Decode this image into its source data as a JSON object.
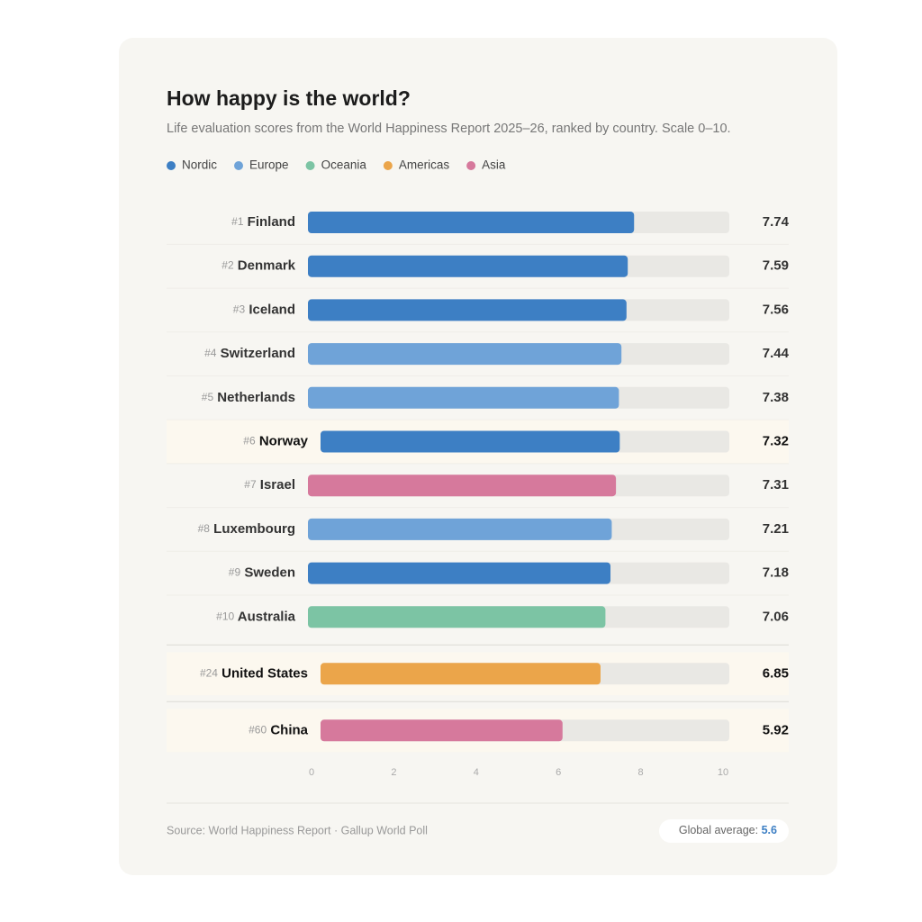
{
  "chart_data": {
    "type": "hbar",
    "title": "How happy is the world?",
    "subtitle": "Life evaluation scores from the World Happiness Report 2025–26, ranked by country. Scale 0–10.",
    "legend": [
      {
        "name": "Nordic",
        "color": "#3d7fc4"
      },
      {
        "name": "Europe",
        "color": "#6fa3d8"
      },
      {
        "name": "Oceania",
        "color": "#7cc4a4"
      },
      {
        "name": "Americas",
        "color": "#eba54a"
      },
      {
        "name": "Asia",
        "color": "#d6799c"
      }
    ],
    "ranks": [
      "#1",
      "#2",
      "#3",
      "#4",
      "#5",
      "#6",
      "#7",
      "#8",
      "#9",
      "#10",
      "#24",
      "#60"
    ],
    "categories": [
      "Finland",
      "Denmark",
      "Iceland",
      "Switzerland",
      "Netherlands",
      "Norway",
      "Israel",
      "Luxembourg",
      "Sweden",
      "Australia",
      "United States",
      "China"
    ],
    "values": [
      7.74,
      7.59,
      7.56,
      7.44,
      7.38,
      7.32,
      7.31,
      7.21,
      7.18,
      7.06,
      6.85,
      5.92
    ],
    "colors": [
      "#3d7fc4",
      "#3d7fc4",
      "#3d7fc4",
      "#6fa3d8",
      "#6fa3d8",
      "#3d7fc4",
      "#d6799c",
      "#6fa3d8",
      "#3d7fc4",
      "#7cc4a4",
      "#eba54a",
      "#d6799c"
    ],
    "highlight": [
      false,
      false,
      false,
      false,
      false,
      true,
      false,
      false,
      false,
      false,
      true,
      true
    ],
    "xlim": [
      0,
      10
    ],
    "xticks": [
      0,
      2,
      4,
      6,
      8,
      10
    ],
    "source": "Source: World Happiness Report · Gallup World Poll",
    "average_label": "Global average:",
    "average": 5.6
  }
}
